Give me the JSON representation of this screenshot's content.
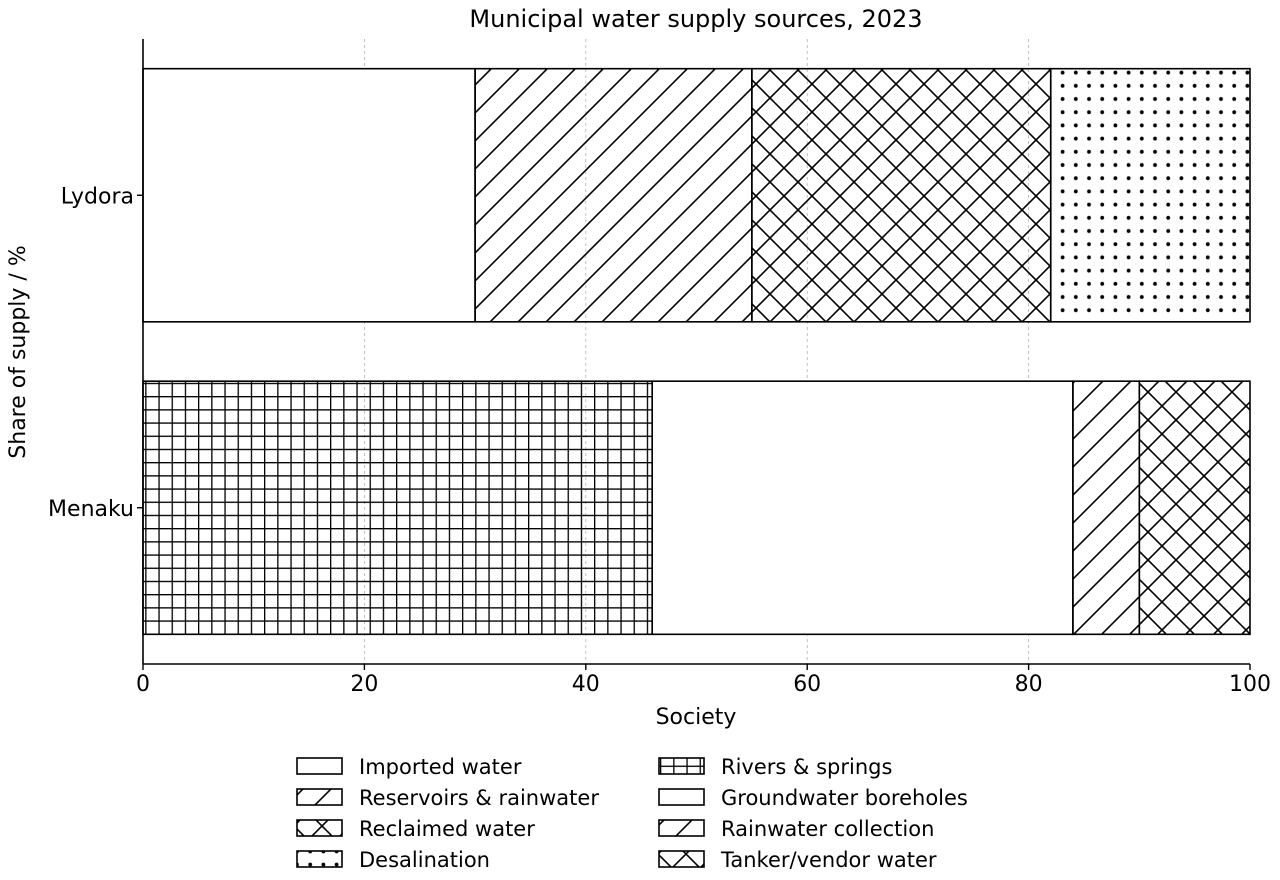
{
  "chart_data": {
    "type": "bar",
    "orientation": "horizontal",
    "stacked": true,
    "title": "Municipal water supply sources, 2023",
    "xlabel": "Society",
    "ylabel": "Share of supply / %",
    "xlim": [
      0,
      100
    ],
    "x_ticks": [
      0,
      20,
      40,
      60,
      80,
      100
    ],
    "grid": "vertical dashed",
    "legend_position": "bottom-center, 2 columns",
    "categories": [
      "Lydora",
      "Menaku"
    ],
    "bars": [
      {
        "category": "Lydora",
        "segments": [
          {
            "name": "Imported water",
            "value": 30,
            "pattern": "none"
          },
          {
            "name": "Reservoirs & rainwater",
            "value": 25,
            "pattern": "diagonal"
          },
          {
            "name": "Reclaimed water",
            "value": 27,
            "pattern": "crosshatch"
          },
          {
            "name": "Desalination",
            "value": 18,
            "pattern": "dots"
          }
        ]
      },
      {
        "category": "Menaku",
        "segments": [
          {
            "name": "Rivers & springs",
            "value": 46,
            "pattern": "grid"
          },
          {
            "name": "Groundwater boreholes",
            "value": 38,
            "pattern": "none"
          },
          {
            "name": "Rainwater collection",
            "value": 6,
            "pattern": "diagonal"
          },
          {
            "name": "Tanker/vendor water",
            "value": 10,
            "pattern": "crosshatch"
          }
        ]
      }
    ],
    "legend": [
      {
        "label": "Imported water",
        "pattern": "none"
      },
      {
        "label": "Reservoirs & rainwater",
        "pattern": "diagonal"
      },
      {
        "label": "Reclaimed water",
        "pattern": "crosshatch"
      },
      {
        "label": "Desalination",
        "pattern": "dots"
      },
      {
        "label": "Rivers & springs",
        "pattern": "grid"
      },
      {
        "label": "Groundwater boreholes",
        "pattern": "none"
      },
      {
        "label": "Rainwater collection",
        "pattern": "diagonal"
      },
      {
        "label": "Tanker/vendor water",
        "pattern": "crosshatch"
      }
    ],
    "colors": {
      "fill": "#ffffff",
      "edge": "#000000",
      "grid": "#b0b0b0"
    }
  }
}
